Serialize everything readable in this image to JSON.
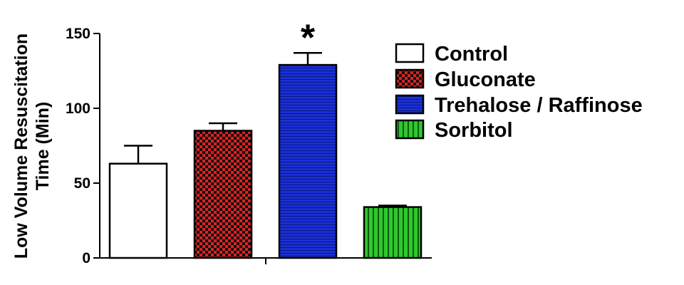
{
  "chart_data": {
    "type": "bar",
    "categories": [
      "Control",
      "Gluconate",
      "Trehalose / Raffinose",
      "Sorbitol"
    ],
    "series": [
      {
        "values": [
          63,
          85,
          129,
          34
        ],
        "error": [
          12,
          5,
          8,
          1
        ]
      }
    ],
    "ylabel": "Low Volume Resuscitation Time (Min)",
    "ylabel_lines": [
      "Low Volume Resuscitation",
      "Time (Min)"
    ],
    "xlabel": "",
    "ylim": [
      0,
      150
    ],
    "yticks": [
      0,
      50,
      100,
      150
    ],
    "ytick_labels": [
      "0",
      "50",
      "100",
      "150"
    ],
    "annotations": [
      {
        "category": "Trehalose / Raffinose",
        "text": "*"
      }
    ],
    "grid": false,
    "legend": {
      "placement": "right",
      "entries": [
        {
          "label": "Control",
          "fill": "white",
          "color": "#ffffff"
        },
        {
          "label": "Gluconate",
          "fill": "checkered",
          "color": "#e02020"
        },
        {
          "label": "Trehalose / Raffinose",
          "fill": "horizontal-lines",
          "color": "#1a2fd6"
        },
        {
          "label": "Sorbitol",
          "fill": "vertical-lines",
          "color": "#2fc82f"
        }
      ]
    }
  }
}
